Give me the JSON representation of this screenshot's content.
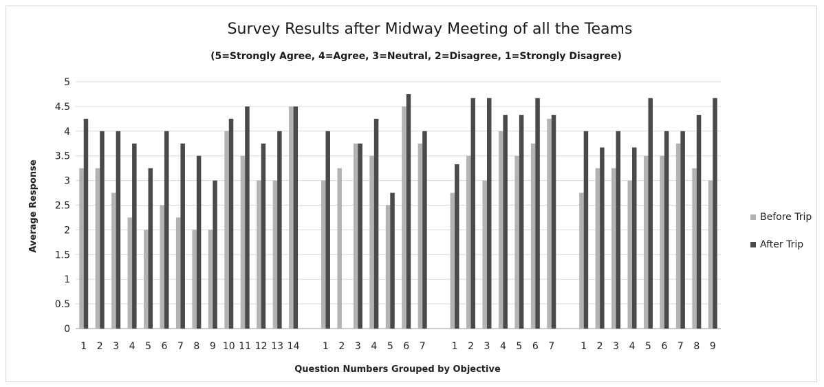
{
  "chart_data": {
    "type": "bar",
    "title": "Survey Results after Midway Meeting of all the Teams",
    "subtitle": "(5=Strongly Agree, 4=Agree, 3=Neutral, 2=Disagree, 1=Strongly Disagree)",
    "xlabel": "Question Numbers Grouped by Objective",
    "ylabel": "Average Response",
    "ylim": [
      0,
      5
    ],
    "yticks": [
      "0",
      "0.5",
      "1",
      "1.5",
      "2",
      "2.5",
      "3",
      "3.5",
      "4",
      "4.5",
      "5"
    ],
    "grid": true,
    "legend_position": "right",
    "categories": [
      "1",
      "2",
      "3",
      "4",
      "5",
      "6",
      "7",
      "8",
      "9",
      "10",
      "11",
      "12",
      "13",
      "14",
      "",
      "1",
      "2",
      "3",
      "4",
      "5",
      "6",
      "7",
      "",
      "1",
      "2",
      "3",
      "4",
      "5",
      "6",
      "7",
      "",
      "1",
      "2",
      "3",
      "4",
      "5",
      "6",
      "7",
      "8",
      "9"
    ],
    "series": [
      {
        "name": "Before Trip",
        "color": "#b3b3b3",
        "values": [
          3.25,
          3.25,
          2.75,
          2.25,
          2.0,
          2.5,
          2.25,
          2.0,
          2.0,
          4.0,
          3.5,
          3.0,
          3.0,
          4.5,
          null,
          3.0,
          3.25,
          3.75,
          3.5,
          2.5,
          4.5,
          3.75,
          null,
          2.75,
          3.5,
          3.0,
          4.0,
          3.5,
          3.75,
          4.25,
          null,
          2.75,
          3.25,
          3.25,
          3.0,
          3.5,
          3.5,
          3.75,
          3.25,
          3.0
        ]
      },
      {
        "name": "After Trip",
        "color": "#4a4a4a",
        "values": [
          4.25,
          4.0,
          4.0,
          3.75,
          3.25,
          4.0,
          3.75,
          3.5,
          3.0,
          4.25,
          4.5,
          3.75,
          4.0,
          4.5,
          null,
          4.0,
          null,
          3.75,
          4.25,
          2.75,
          4.75,
          4.0,
          null,
          3.33,
          4.67,
          4.67,
          4.33,
          4.33,
          4.67,
          4.33,
          null,
          4.0,
          3.67,
          4.0,
          3.67,
          4.67,
          4.0,
          4.0,
          4.33,
          4.67
        ]
      }
    ]
  }
}
